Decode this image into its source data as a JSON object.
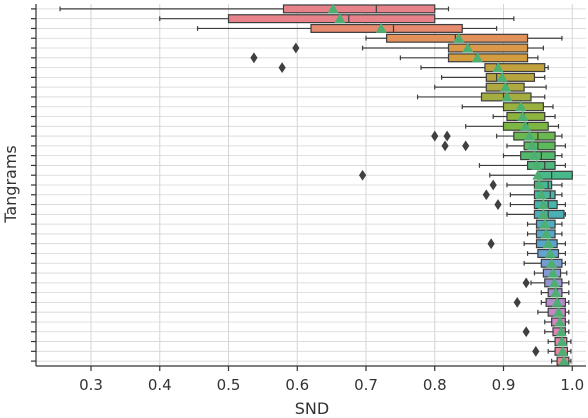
{
  "chart_data": {
    "type": "boxplot",
    "orientation": "horizontal",
    "xlabel": "SND",
    "ylabel": "Tangrams",
    "xlim": [
      0.22,
      1.02
    ],
    "xticks": [
      0.3,
      0.4,
      0.5,
      0.6,
      0.7,
      0.8,
      0.9,
      1.0
    ],
    "xtick_labels": [
      "0.3",
      "0.4",
      "0.5",
      "0.6",
      "0.7",
      "0.8",
      "0.9",
      "1.0"
    ],
    "grid": true,
    "mean_marker": "triangle",
    "colors": {
      "mean": "#4daf72",
      "outlier": "#404040",
      "box_edge": "#3d3d3d",
      "grid": "#d6d6d6"
    },
    "boxes": [
      {
        "min": 0.255,
        "q1": 0.58,
        "median": 0.715,
        "q3": 0.8,
        "max": 0.82,
        "mean": 0.652,
        "color": "#e8828a",
        "outliers": []
      },
      {
        "min": 0.4,
        "q1": 0.5,
        "median": 0.675,
        "q3": 0.8,
        "max": 0.915,
        "mean": 0.662,
        "color": "#e8828a",
        "outliers": []
      },
      {
        "min": 0.455,
        "q1": 0.62,
        "median": 0.74,
        "q3": 0.84,
        "max": 0.89,
        "mean": 0.722,
        "color": "#e68a70",
        "outliers": []
      },
      {
        "min": 0.7,
        "q1": 0.73,
        "median": 0.83,
        "q3": 0.935,
        "max": 0.985,
        "mean": 0.835,
        "color": "#e2915b",
        "outliers": []
      },
      {
        "min": 0.695,
        "q1": 0.82,
        "median": 0.85,
        "q3": 0.935,
        "max": 0.958,
        "mean": 0.848,
        "color": "#da9848",
        "outliers": [
          0.598
        ]
      },
      {
        "min": 0.75,
        "q1": 0.82,
        "median": 0.86,
        "q3": 0.935,
        "max": 0.95,
        "mean": 0.862,
        "color": "#d39c3f",
        "outliers": [
          0.537
        ]
      },
      {
        "min": 0.78,
        "q1": 0.873,
        "median": 0.89,
        "q3": 0.96,
        "max": 0.965,
        "mean": 0.892,
        "color": "#c2a23f",
        "outliers": [
          0.578
        ]
      },
      {
        "min": 0.81,
        "q1": 0.875,
        "median": 0.89,
        "q3": 0.945,
        "max": 0.96,
        "mean": 0.898,
        "color": "#b8a53f",
        "outliers": []
      },
      {
        "min": 0.8,
        "q1": 0.875,
        "median": 0.905,
        "q3": 0.93,
        "max": 0.962,
        "mean": 0.903,
        "color": "#aeaa3f",
        "outliers": []
      },
      {
        "min": 0.775,
        "q1": 0.868,
        "median": 0.9,
        "q3": 0.94,
        "max": 0.96,
        "mean": 0.905,
        "color": "#a4ad3f",
        "outliers": []
      },
      {
        "min": 0.84,
        "q1": 0.9,
        "median": 0.925,
        "q3": 0.958,
        "max": 0.972,
        "mean": 0.925,
        "color": "#98b13f",
        "outliers": []
      },
      {
        "min": 0.885,
        "q1": 0.905,
        "median": 0.93,
        "q3": 0.96,
        "max": 0.975,
        "mean": 0.928,
        "color": "#8db43f",
        "outliers": []
      },
      {
        "min": 0.845,
        "q1": 0.9,
        "median": 0.935,
        "q3": 0.965,
        "max": 0.98,
        "mean": 0.932,
        "color": "#7db743",
        "outliers": []
      },
      {
        "min": 0.89,
        "q1": 0.915,
        "median": 0.95,
        "q3": 0.975,
        "max": 0.985,
        "mean": 0.938,
        "color": "#6ab84f",
        "outliers": [
          0.8,
          0.818
        ]
      },
      {
        "min": 0.905,
        "q1": 0.93,
        "median": 0.95,
        "q3": 0.975,
        "max": 0.99,
        "mean": 0.942,
        "color": "#5cb95c",
        "outliers": [
          0.815,
          0.845
        ]
      },
      {
        "min": 0.9,
        "q1": 0.925,
        "median": 0.955,
        "q3": 0.975,
        "max": 0.985,
        "mean": 0.945,
        "color": "#52b96c",
        "outliers": []
      },
      {
        "min": 0.865,
        "q1": 0.935,
        "median": 0.96,
        "q3": 0.975,
        "max": 0.99,
        "mean": 0.948,
        "color": "#4cb97b",
        "outliers": []
      },
      {
        "min": 0.88,
        "q1": 0.95,
        "median": 0.97,
        "q3": 1.0,
        "max": 1.0,
        "mean": 0.95,
        "color": "#48b98a",
        "outliers": [
          0.695
        ]
      },
      {
        "min": 0.905,
        "q1": 0.945,
        "median": 0.965,
        "q3": 0.97,
        "max": 0.985,
        "mean": 0.952,
        "color": "#46b898",
        "outliers": [
          0.885
        ]
      },
      {
        "min": 0.91,
        "q1": 0.945,
        "median": 0.968,
        "q3": 0.975,
        "max": 0.985,
        "mean": 0.955,
        "color": "#47b6a4",
        "outliers": [
          0.875
        ]
      },
      {
        "min": 0.91,
        "q1": 0.945,
        "median": 0.965,
        "q3": 0.978,
        "max": 0.99,
        "mean": 0.958,
        "color": "#49b3ae",
        "outliers": [
          0.892
        ]
      },
      {
        "min": 0.905,
        "q1": 0.945,
        "median": 0.965,
        "q3": 0.988,
        "max": 0.99,
        "mean": 0.958,
        "color": "#4bb0b6",
        "outliers": []
      },
      {
        "min": 0.935,
        "q1": 0.948,
        "median": 0.96,
        "q3": 0.975,
        "max": 0.985,
        "mean": 0.96,
        "color": "#4eadbe",
        "outliers": []
      },
      {
        "min": 0.935,
        "q1": 0.948,
        "median": 0.962,
        "q3": 0.975,
        "max": 0.985,
        "mean": 0.962,
        "color": "#53aac4",
        "outliers": []
      },
      {
        "min": 0.93,
        "q1": 0.948,
        "median": 0.965,
        "q3": 0.978,
        "max": 0.99,
        "mean": 0.965,
        "color": "#5aa6ca",
        "outliers": [
          0.882
        ]
      },
      {
        "min": 0.935,
        "q1": 0.95,
        "median": 0.968,
        "q3": 0.98,
        "max": 0.99,
        "mean": 0.968,
        "color": "#65a2cf",
        "outliers": []
      },
      {
        "min": 0.93,
        "q1": 0.955,
        "median": 0.97,
        "q3": 0.985,
        "max": 0.99,
        "mean": 0.97,
        "color": "#739dd1",
        "outliers": []
      },
      {
        "min": 0.945,
        "q1": 0.958,
        "median": 0.972,
        "q3": 0.983,
        "max": 0.992,
        "mean": 0.972,
        "color": "#8498d2",
        "outliers": []
      },
      {
        "min": 0.94,
        "q1": 0.96,
        "median": 0.975,
        "q3": 0.985,
        "max": 0.995,
        "mean": 0.974,
        "color": "#9692d2",
        "outliers": [
          0.933
        ]
      },
      {
        "min": 0.955,
        "q1": 0.965,
        "median": 0.978,
        "q3": 0.985,
        "max": 0.995,
        "mean": 0.976,
        "color": "#a88dd0",
        "outliers": []
      },
      {
        "min": 0.955,
        "q1": 0.962,
        "median": 0.98,
        "q3": 0.99,
        "max": 0.995,
        "mean": 0.978,
        "color": "#b88acc",
        "outliers": [
          0.92
        ]
      },
      {
        "min": 0.95,
        "q1": 0.965,
        "median": 0.98,
        "q3": 0.99,
        "max": 0.995,
        "mean": 0.98,
        "color": "#c687c6",
        "outliers": []
      },
      {
        "min": 0.96,
        "q1": 0.97,
        "median": 0.982,
        "q3": 0.99,
        "max": 0.995,
        "mean": 0.982,
        "color": "#d285c0",
        "outliers": []
      },
      {
        "min": 0.96,
        "q1": 0.972,
        "median": 0.983,
        "q3": 0.99,
        "max": 0.995,
        "mean": 0.984,
        "color": "#dc84b6",
        "outliers": [
          0.933
        ]
      },
      {
        "min": 0.965,
        "q1": 0.975,
        "median": 0.985,
        "q3": 0.992,
        "max": 0.998,
        "mean": 0.985,
        "color": "#e284ab",
        "outliers": []
      },
      {
        "min": 0.965,
        "q1": 0.975,
        "median": 0.985,
        "q3": 0.993,
        "max": 0.998,
        "mean": 0.986,
        "color": "#e486a0",
        "outliers": [
          0.947
        ]
      },
      {
        "min": 0.97,
        "q1": 0.978,
        "median": 0.988,
        "q3": 0.995,
        "max": 0.998,
        "mean": 0.988,
        "color": "#e58895",
        "outliers": []
      }
    ]
  }
}
